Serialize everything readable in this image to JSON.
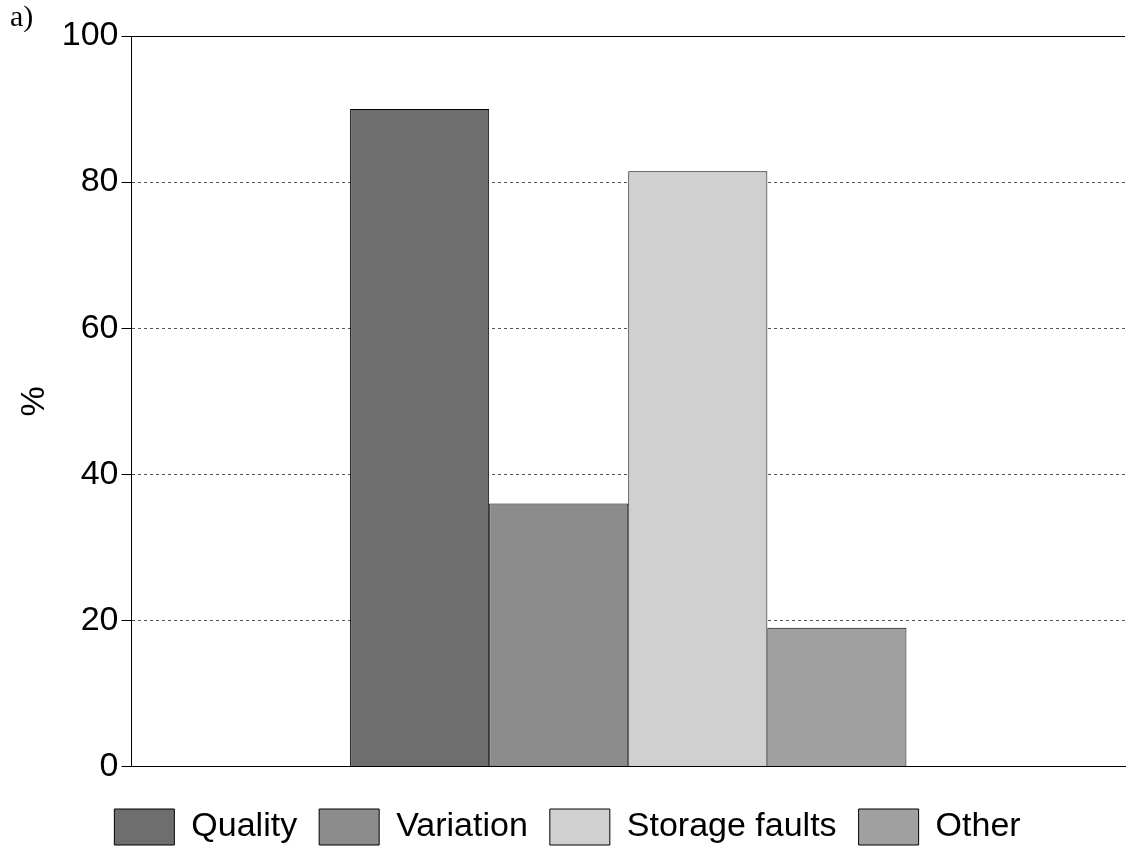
{
  "chart_data": {
    "type": "bar",
    "title": "a)",
    "ylabel": "%",
    "categories": [
      null
    ],
    "series": [
      {
        "name": "Quality",
        "color": "#6e6e6e",
        "values": [
          90
        ]
      },
      {
        "name": "Variation",
        "color": "#8c8c8c",
        "values": [
          36
        ]
      },
      {
        "name": "Storage faults",
        "color": "#d0d0d0",
        "values": [
          81.5
        ]
      },
      {
        "name": "Other",
        "color": "#a0a0a0",
        "values": [
          19
        ]
      }
    ],
    "ylim": [
      0,
      100
    ],
    "yticks": [
      0,
      20,
      40,
      60,
      80,
      100
    ],
    "grid": "y",
    "legend": "bottom"
  }
}
